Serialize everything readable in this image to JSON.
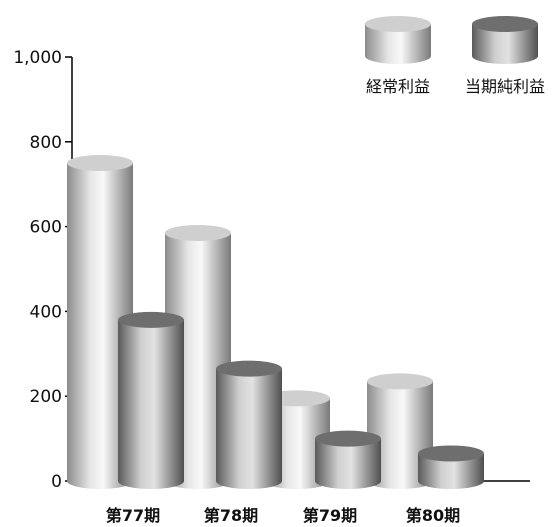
{
  "chart_data": {
    "type": "bar",
    "title": "",
    "xlabel": "",
    "ylabel": "",
    "categories": [
      "第77期",
      "第78期",
      "第79期",
      "第80期"
    ],
    "series": [
      {
        "name": "経常利益",
        "values": [
          750,
          585,
          195,
          235
        ],
        "color": "#b8b8b8",
        "top_color": "#cfcfcf"
      },
      {
        "name": "当期純利益",
        "values": [
          380,
          265,
          100,
          65
        ],
        "color": "#8a8a8a",
        "top_color": "#6e6e6e"
      }
    ],
    "ylim": [
      0,
      1000
    ],
    "yticks": [
      0,
      200,
      400,
      600,
      800,
      1000
    ],
    "ytick_labels": [
      "0",
      "200",
      "400",
      "600",
      "800",
      "1,000"
    ],
    "grid": false,
    "legend_position": "top-right",
    "style": "3d-cylinder"
  }
}
